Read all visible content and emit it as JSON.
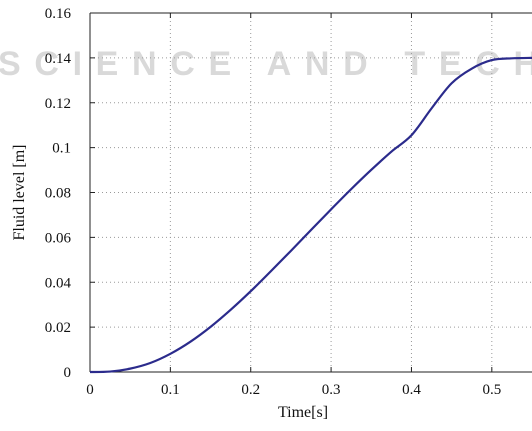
{
  "watermark": {
    "line1": "SCIENCE AND TECH"
  },
  "chart_data": {
    "type": "line",
    "xlabel": "Time[s]",
    "ylabel": "Fluid level [m]",
    "xlim": [
      0,
      0.55
    ],
    "ylim": [
      0,
      0.16
    ],
    "xticks": [
      0,
      0.1,
      0.2,
      0.3,
      0.4,
      0.5
    ],
    "xtick_labels": [
      "0",
      "0.1",
      "0.2",
      "0.3",
      "0.4",
      "0.5"
    ],
    "yticks": [
      0,
      0.02,
      0.04,
      0.06,
      0.08,
      0.1,
      0.12,
      0.14,
      0.16
    ],
    "ytick_labels": [
      "0",
      "0.02",
      "0.04",
      "0.06",
      "0.08",
      "0.1",
      "0.12",
      "0.14",
      "0.16"
    ],
    "grid": true,
    "series": [
      {
        "color": "#2b2b8c",
        "x": [
          0,
          0.025,
          0.05,
          0.075,
          0.1,
          0.125,
          0.15,
          0.175,
          0.2,
          0.225,
          0.25,
          0.275,
          0.3,
          0.325,
          0.35,
          0.375,
          0.4,
          0.425,
          0.45,
          0.475,
          0.5,
          0.525,
          0.55
        ],
        "y": [
          0,
          0.0002,
          0.0015,
          0.004,
          0.0081,
          0.0135,
          0.0201,
          0.0277,
          0.036,
          0.0449,
          0.054,
          0.0633,
          0.0725,
          0.0815,
          0.0901,
          0.0982,
          0.1055,
          0.1175,
          0.1287,
          0.1352,
          0.139,
          0.1398,
          0.14
        ]
      }
    ]
  }
}
